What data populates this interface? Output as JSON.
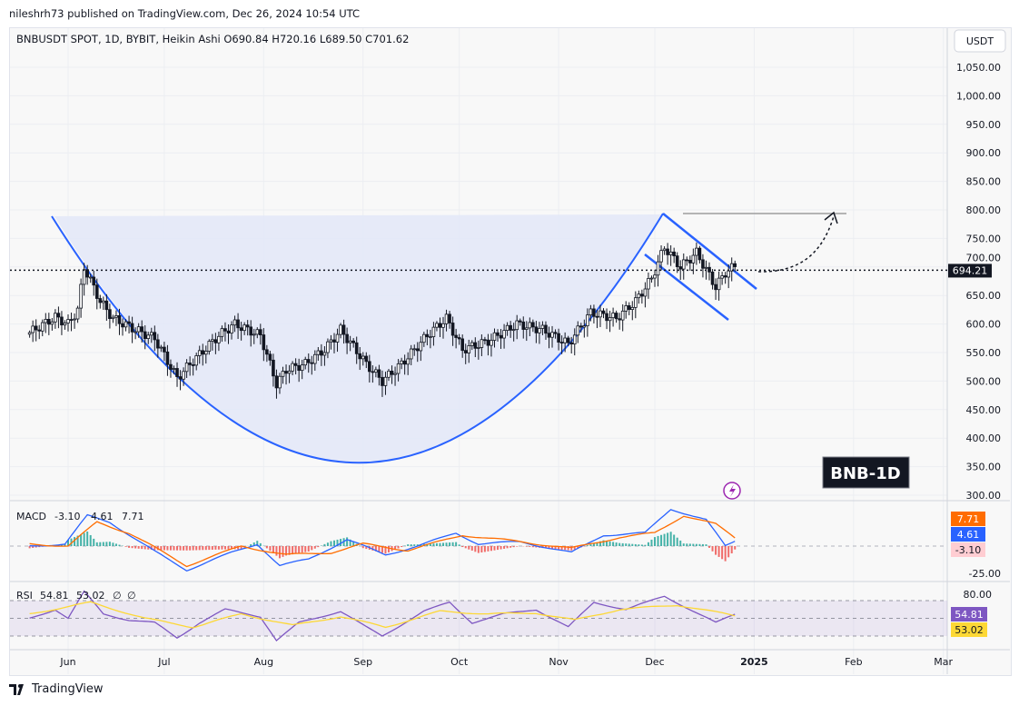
{
  "publisher_line": "nileshrh73 published on TradingView.com, Dec 26, 2024 10:54 UTC",
  "symbol_legend": "BNBUSDT SPOT, 1D, BYBIT, Heikin Ashi  O690.84  H720.16  L689.50  C701.62",
  "currency_label": "USDT",
  "current_price_label": "694.21",
  "annotation_label": "BNB-1D",
  "footer_brand": "TradingView",
  "colors": {
    "drawing": "#2962ff",
    "macd": "#2962ff",
    "signal": "#ff6d00",
    "rsi": "#7e57c2",
    "rsi_ma": "#fdd835",
    "hist_up": "#26a69a",
    "hist_down": "#ef5350",
    "cup_fill": "#e3e8f8"
  },
  "chart_data": [
    {
      "type": "candlestick",
      "style": "Heikin Ashi",
      "ylim": [
        300,
        1050
      ],
      "y_ticks": [
        "1,050.00",
        "1,000.00",
        "950.00",
        "900.00",
        "850.00",
        "800.00",
        "750.00",
        "700.00",
        "650.00",
        "600.00",
        "550.00",
        "500.00",
        "450.00",
        "400.00",
        "350.00",
        "300.00"
      ],
      "y_tick_values": [
        1050,
        1000,
        950,
        900,
        850,
        800,
        750,
        700,
        650,
        600,
        550,
        500,
        450,
        400,
        350,
        300
      ],
      "x_ticks": [
        "Jun",
        "Jul",
        "Aug",
        "Sep",
        "Oct",
        "Nov",
        "Dec",
        "2025",
        "Feb",
        "Mar"
      ],
      "x_tick_dates": [
        "2024-06-01",
        "2024-07-01",
        "2024-08-01",
        "2024-09-01",
        "2024-10-01",
        "2024-11-01",
        "2024-12-01",
        "2025-01-01",
        "2025-02-01",
        "2025-03-01"
      ],
      "price_path": [
        [
          "2024-05-20",
          585
        ],
        [
          "2024-05-28",
          612
        ],
        [
          "2024-06-01",
          600
        ],
        [
          "2024-06-04",
          625
        ],
        [
          "2024-06-06",
          700
        ],
        [
          "2024-06-11",
          640
        ],
        [
          "2024-06-15",
          610
        ],
        [
          "2024-06-22",
          590
        ],
        [
          "2024-06-28",
          575
        ],
        [
          "2024-07-05",
          505
        ],
        [
          "2024-07-09",
          530
        ],
        [
          "2024-07-18",
          580
        ],
        [
          "2024-07-23",
          600
        ],
        [
          "2024-07-31",
          580
        ],
        [
          "2024-08-05",
          495
        ],
        [
          "2024-08-08",
          520
        ],
        [
          "2024-08-14",
          530
        ],
        [
          "2024-08-20",
          555
        ],
        [
          "2024-08-25",
          590
        ],
        [
          "2024-08-29",
          560
        ],
        [
          "2024-09-02",
          530
        ],
        [
          "2024-09-07",
          500
        ],
        [
          "2024-09-13",
          530
        ],
        [
          "2024-09-21",
          580
        ],
        [
          "2024-09-27",
          610
        ],
        [
          "2024-10-02",
          555
        ],
        [
          "2024-10-10",
          570
        ],
        [
          "2024-10-19",
          600
        ],
        [
          "2024-10-27",
          590
        ],
        [
          "2024-11-04",
          565
        ],
        [
          "2024-11-11",
          620
        ],
        [
          "2024-11-19",
          610
        ],
        [
          "2024-11-25",
          640
        ],
        [
          "2024-11-30",
          680
        ],
        [
          "2024-12-04",
          735
        ],
        [
          "2024-12-09",
          700
        ],
        [
          "2024-12-14",
          725
        ],
        [
          "2024-12-20",
          665
        ],
        [
          "2024-12-23",
          690
        ],
        [
          "2024-12-26",
          701.62
        ]
      ],
      "current_price": 694.21,
      "last_ohlc": {
        "open": 690.84,
        "high": 720.16,
        "low": 689.5,
        "close": 701.62
      }
    },
    {
      "type": "line",
      "name": "MACD",
      "legend_values": [
        "-3.10",
        "4.61",
        "7.71"
      ],
      "axis_labels": [
        "7.71",
        "4.61",
        "-3.10",
        "-25.00"
      ],
      "macd": [
        [
          "2024-05-20",
          0
        ],
        [
          "2024-05-31",
          2
        ],
        [
          "2024-06-07",
          28
        ],
        [
          "2024-06-14",
          22
        ],
        [
          "2024-06-28",
          -5
        ],
        [
          "2024-07-08",
          -22
        ],
        [
          "2024-07-22",
          -6
        ],
        [
          "2024-07-30",
          2
        ],
        [
          "2024-08-06",
          -18
        ],
        [
          "2024-08-15",
          -12
        ],
        [
          "2024-08-27",
          6
        ],
        [
          "2024-09-08",
          -8
        ],
        [
          "2024-09-18",
          0
        ],
        [
          "2024-09-30",
          12
        ],
        [
          "2024-10-07",
          2
        ],
        [
          "2024-10-20",
          4
        ],
        [
          "2024-11-05",
          -6
        ],
        [
          "2024-11-15",
          10
        ],
        [
          "2024-11-28",
          12
        ],
        [
          "2024-12-06",
          34
        ],
        [
          "2024-12-17",
          24
        ],
        [
          "2024-12-23",
          0
        ],
        [
          "2024-12-26",
          4.61
        ]
      ],
      "signal": [
        [
          "2024-05-20",
          2
        ],
        [
          "2024-06-01",
          0
        ],
        [
          "2024-06-10",
          22
        ],
        [
          "2024-06-20",
          12
        ],
        [
          "2024-07-08",
          -18
        ],
        [
          "2024-07-25",
          0
        ],
        [
          "2024-08-08",
          -8
        ],
        [
          "2024-08-22",
          -6
        ],
        [
          "2024-09-01",
          2
        ],
        [
          "2024-09-15",
          -4
        ],
        [
          "2024-10-02",
          10
        ],
        [
          "2024-10-20",
          4
        ],
        [
          "2024-11-05",
          -2
        ],
        [
          "2024-11-20",
          8
        ],
        [
          "2024-12-01",
          12
        ],
        [
          "2024-12-10",
          28
        ],
        [
          "2024-12-20",
          20
        ],
        [
          "2024-12-26",
          7.71
        ]
      ]
    },
    {
      "type": "line",
      "name": "RSI",
      "legend_values": [
        "54.81",
        "53.02",
        "∅",
        "∅"
      ],
      "axis_labels": [
        "80.00",
        "54.81",
        "53.02"
      ],
      "bands": [
        70,
        30
      ],
      "rsi": [
        [
          "2024-05-20",
          50
        ],
        [
          "2024-05-28",
          60
        ],
        [
          "2024-06-01",
          50
        ],
        [
          "2024-06-06",
          80
        ],
        [
          "2024-06-12",
          55
        ],
        [
          "2024-06-20",
          48
        ],
        [
          "2024-06-28",
          45
        ],
        [
          "2024-07-05",
          28
        ],
        [
          "2024-07-12",
          45
        ],
        [
          "2024-07-20",
          60
        ],
        [
          "2024-07-31",
          52
        ],
        [
          "2024-08-05",
          25
        ],
        [
          "2024-08-12",
          45
        ],
        [
          "2024-08-25",
          58
        ],
        [
          "2024-09-02",
          40
        ],
        [
          "2024-09-07",
          30
        ],
        [
          "2024-09-20",
          58
        ],
        [
          "2024-09-28",
          68
        ],
        [
          "2024-10-05",
          45
        ],
        [
          "2024-10-15",
          55
        ],
        [
          "2024-10-25",
          60
        ],
        [
          "2024-11-04",
          40
        ],
        [
          "2024-11-12",
          68
        ],
        [
          "2024-11-22",
          60
        ],
        [
          "2024-12-04",
          75
        ],
        [
          "2024-12-12",
          60
        ],
        [
          "2024-12-20",
          45
        ],
        [
          "2024-12-26",
          54.81
        ]
      ],
      "rsi_ma": [
        [
          "2024-05-20",
          55
        ],
        [
          "2024-06-08",
          68
        ],
        [
          "2024-06-25",
          50
        ],
        [
          "2024-07-10",
          40
        ],
        [
          "2024-07-25",
          55
        ],
        [
          "2024-08-10",
          42
        ],
        [
          "2024-08-25",
          52
        ],
        [
          "2024-09-08",
          40
        ],
        [
          "2024-09-25",
          58
        ],
        [
          "2024-10-10",
          55
        ],
        [
          "2024-10-25",
          56
        ],
        [
          "2024-11-06",
          48
        ],
        [
          "2024-11-20",
          60
        ],
        [
          "2024-12-08",
          65
        ],
        [
          "2024-12-26",
          53.02
        ]
      ]
    }
  ]
}
